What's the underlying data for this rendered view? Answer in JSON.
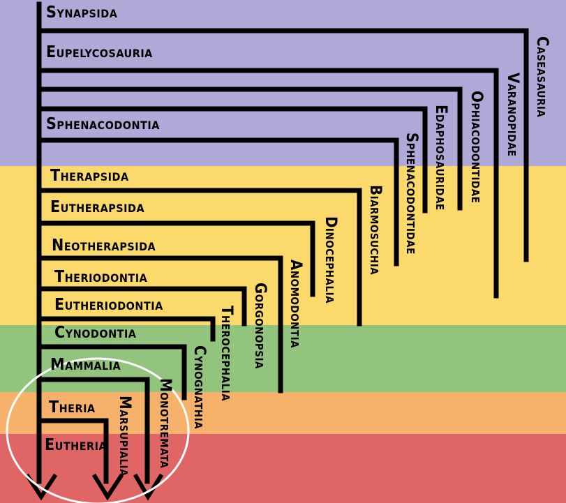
{
  "colors": {
    "band_purple": "#b0a8d6",
    "band_yellow": "#fbd96b",
    "band_green": "#93c47d",
    "band_orange": "#f6b26b",
    "band_red": "#e06666",
    "line": "#000000",
    "highlight_ellipse": "#ffffff"
  },
  "clade_labels": {
    "synapsida": "Synapsida",
    "eupelycosauria": "Eupelycosauria",
    "sphenacodontia": "Sphenacodontia",
    "therapsida": "Therapsida",
    "eutherapsida": "Eutherapsida",
    "neotherapsida": "Neotherapsida",
    "theriodontia": "Theriodontia",
    "eutheriodontia": "Eutheriodontia",
    "cynodontia": "Cynodontia",
    "mammalia": "Mammalia",
    "theria": "Theria",
    "eutheria": "Eutheria"
  },
  "taxon_labels": {
    "caseasauria": "Caseasauria",
    "varanopidae": "Varanopidae",
    "ophiacodontidae": "Ophiacodontidae",
    "edaphosauridae": "Edaphosauridae",
    "sphenacodontidae": "Sphenacodontidae",
    "biarmosuchia": "Biarmosuchia",
    "dinocephalia": "Dinocephalia",
    "anomodontia": "Anomodontia",
    "gorgonopsia": "Gorgonopsia",
    "therocephalia": "Therocephalia",
    "cynognathia": "Cynognathia",
    "monotremata": "Monotremata",
    "marsupialia": "Marsupialia"
  }
}
